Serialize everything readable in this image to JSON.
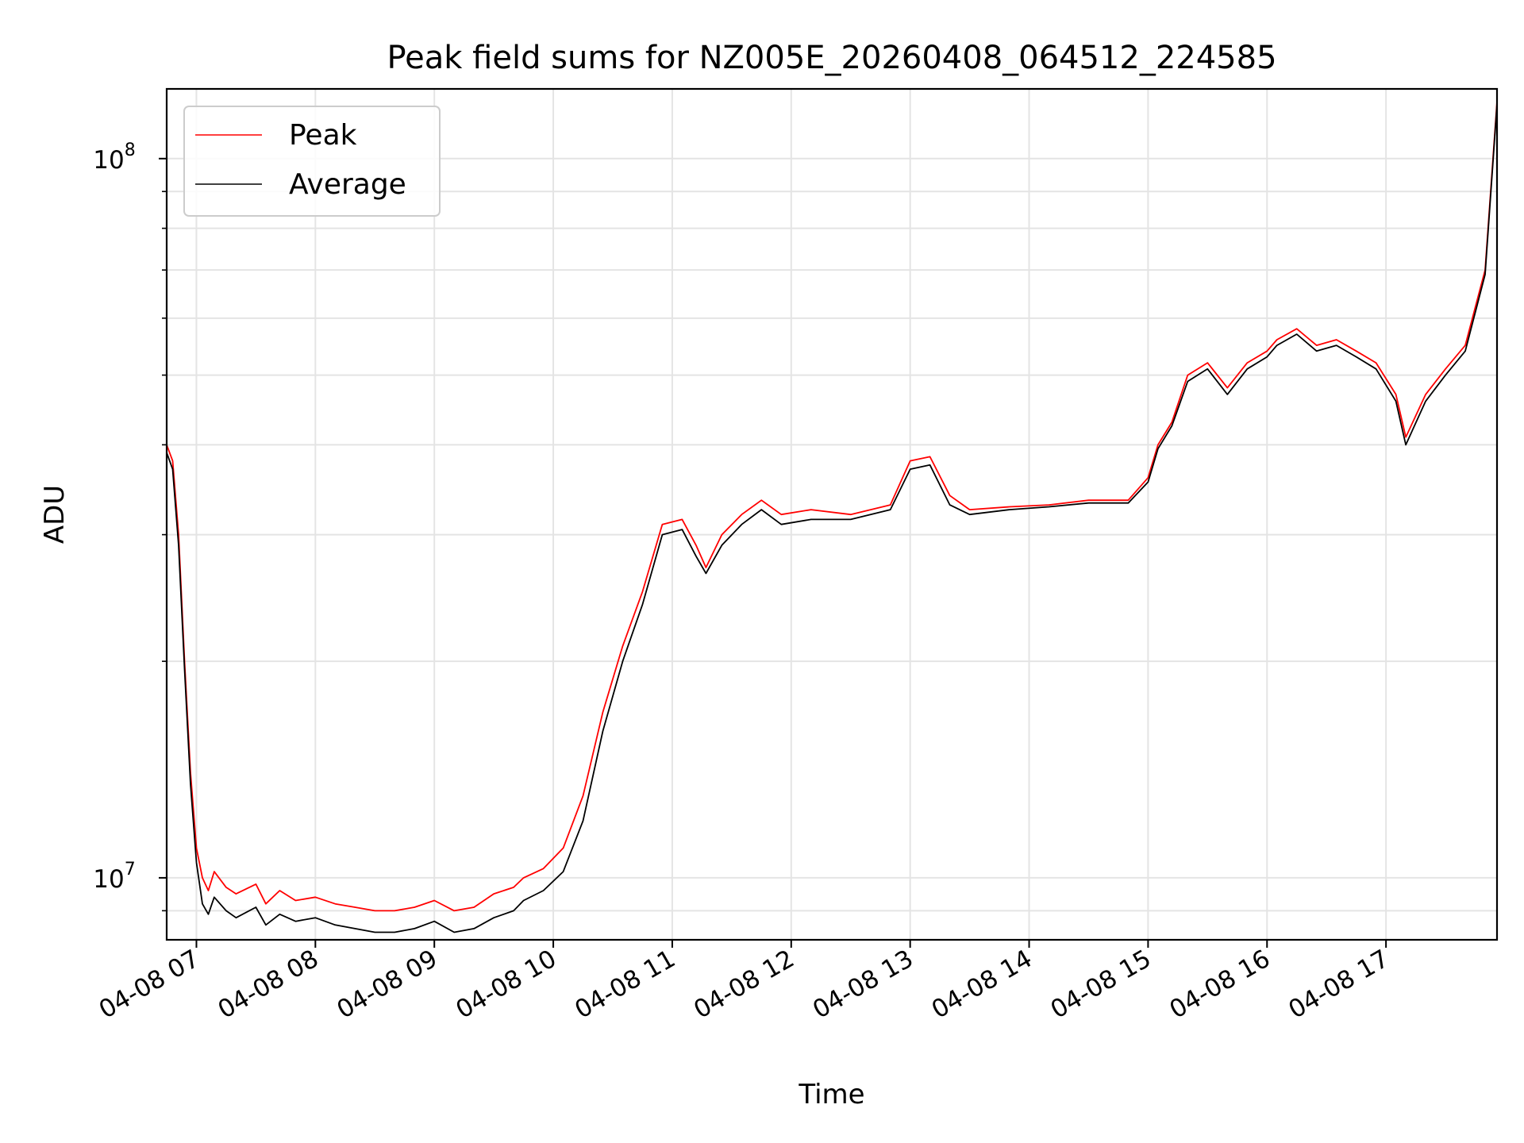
{
  "chart_data": {
    "type": "line",
    "title": "Peak field sums for NZ005E_20260408_064512_224585",
    "xlabel": "Time",
    "ylabel": "ADU",
    "yscale": "log",
    "ylim": [
      8200000,
      125000000
    ],
    "xlim": [
      "2026-04-08 06:45",
      "2026-04-08 17:56"
    ],
    "grid": true,
    "legend": "top-left",
    "x_ticks": [
      {
        "t": "2026-04-08 07:00",
        "label": "04-08 07"
      },
      {
        "t": "2026-04-08 08:00",
        "label": "04-08 08"
      },
      {
        "t": "2026-04-08 09:00",
        "label": "04-08 09"
      },
      {
        "t": "2026-04-08 10:00",
        "label": "04-08 10"
      },
      {
        "t": "2026-04-08 11:00",
        "label": "04-08 11"
      },
      {
        "t": "2026-04-08 12:00",
        "label": "04-08 12"
      },
      {
        "t": "2026-04-08 13:00",
        "label": "04-08 13"
      },
      {
        "t": "2026-04-08 14:00",
        "label": "04-08 14"
      },
      {
        "t": "2026-04-08 15:00",
        "label": "04-08 15"
      },
      {
        "t": "2026-04-08 16:00",
        "label": "04-08 16"
      },
      {
        "t": "2026-04-08 17:00",
        "label": "04-08 17"
      }
    ],
    "y_ticks": [
      {
        "value": 10000000,
        "base": "10",
        "exp": "7"
      },
      {
        "value": 100000000,
        "base": "10",
        "exp": "8"
      }
    ],
    "series": [
      {
        "name": "Peak",
        "color": "#ff0000",
        "x": [
          "2026-04-08 06:45",
          "2026-04-08 06:48",
          "2026-04-08 06:51",
          "2026-04-08 06:54",
          "2026-04-08 06:57",
          "2026-04-08 07:00",
          "2026-04-08 07:03",
          "2026-04-08 07:06",
          "2026-04-08 07:09",
          "2026-04-08 07:15",
          "2026-04-08 07:20",
          "2026-04-08 07:30",
          "2026-04-08 07:35",
          "2026-04-08 07:42",
          "2026-04-08 07:50",
          "2026-04-08 08:00",
          "2026-04-08 08:10",
          "2026-04-08 08:20",
          "2026-04-08 08:30",
          "2026-04-08 08:40",
          "2026-04-08 08:50",
          "2026-04-08 09:00",
          "2026-04-08 09:10",
          "2026-04-08 09:20",
          "2026-04-08 09:30",
          "2026-04-08 09:40",
          "2026-04-08 09:45",
          "2026-04-08 09:55",
          "2026-04-08 10:05",
          "2026-04-08 10:15",
          "2026-04-08 10:25",
          "2026-04-08 10:35",
          "2026-04-08 10:45",
          "2026-04-08 10:55",
          "2026-04-08 11:05",
          "2026-04-08 11:12",
          "2026-04-08 11:17",
          "2026-04-08 11:25",
          "2026-04-08 11:35",
          "2026-04-08 11:45",
          "2026-04-08 11:55",
          "2026-04-08 12:10",
          "2026-04-08 12:30",
          "2026-04-08 12:50",
          "2026-04-08 13:00",
          "2026-04-08 13:10",
          "2026-04-08 13:20",
          "2026-04-08 13:30",
          "2026-04-08 13:50",
          "2026-04-08 14:10",
          "2026-04-08 14:30",
          "2026-04-08 14:50",
          "2026-04-08 15:00",
          "2026-04-08 15:05",
          "2026-04-08 15:12",
          "2026-04-08 15:20",
          "2026-04-08 15:30",
          "2026-04-08 15:40",
          "2026-04-08 15:50",
          "2026-04-08 16:00",
          "2026-04-08 16:05",
          "2026-04-08 16:15",
          "2026-04-08 16:25",
          "2026-04-08 16:35",
          "2026-04-08 16:45",
          "2026-04-08 16:55",
          "2026-04-08 17:05",
          "2026-04-08 17:10",
          "2026-04-08 17:20",
          "2026-04-08 17:30",
          "2026-04-08 17:40",
          "2026-04-08 17:50",
          "2026-04-08 17:56"
        ],
        "values": [
          40000000,
          38000000,
          30000000,
          20000000,
          14000000,
          11000000,
          10000000,
          9600000,
          10200000,
          9700000,
          9500000,
          9800000,
          9200000,
          9600000,
          9300000,
          9400000,
          9200000,
          9100000,
          9000000,
          9000000,
          9100000,
          9300000,
          9000000,
          9100000,
          9500000,
          9700000,
          10000000,
          10300000,
          11000000,
          13000000,
          17000000,
          21000000,
          25000000,
          31000000,
          31500000,
          29000000,
          27000000,
          30000000,
          32000000,
          33500000,
          32000000,
          32500000,
          32000000,
          33000000,
          38000000,
          38500000,
          34000000,
          32500000,
          32800000,
          33000000,
          33500000,
          33500000,
          36000000,
          40000000,
          43000000,
          50000000,
          52000000,
          48000000,
          52000000,
          54000000,
          56000000,
          58000000,
          55000000,
          56000000,
          54000000,
          52000000,
          47000000,
          41000000,
          47000000,
          51000000,
          55000000,
          70000000,
          120000000
        ]
      },
      {
        "name": "Average",
        "color": "#000000",
        "x": [
          "2026-04-08 06:45",
          "2026-04-08 06:48",
          "2026-04-08 06:51",
          "2026-04-08 06:54",
          "2026-04-08 06:57",
          "2026-04-08 07:00",
          "2026-04-08 07:03",
          "2026-04-08 07:06",
          "2026-04-08 07:09",
          "2026-04-08 07:15",
          "2026-04-08 07:20",
          "2026-04-08 07:30",
          "2026-04-08 07:35",
          "2026-04-08 07:42",
          "2026-04-08 07:50",
          "2026-04-08 08:00",
          "2026-04-08 08:10",
          "2026-04-08 08:20",
          "2026-04-08 08:30",
          "2026-04-08 08:40",
          "2026-04-08 08:50",
          "2026-04-08 09:00",
          "2026-04-08 09:10",
          "2026-04-08 09:20",
          "2026-04-08 09:30",
          "2026-04-08 09:40",
          "2026-04-08 09:45",
          "2026-04-08 09:55",
          "2026-04-08 10:05",
          "2026-04-08 10:15",
          "2026-04-08 10:25",
          "2026-04-08 10:35",
          "2026-04-08 10:45",
          "2026-04-08 10:55",
          "2026-04-08 11:05",
          "2026-04-08 11:12",
          "2026-04-08 11:17",
          "2026-04-08 11:25",
          "2026-04-08 11:35",
          "2026-04-08 11:45",
          "2026-04-08 11:55",
          "2026-04-08 12:10",
          "2026-04-08 12:30",
          "2026-04-08 12:50",
          "2026-04-08 13:00",
          "2026-04-08 13:10",
          "2026-04-08 13:20",
          "2026-04-08 13:30",
          "2026-04-08 13:50",
          "2026-04-08 14:10",
          "2026-04-08 14:30",
          "2026-04-08 14:50",
          "2026-04-08 15:00",
          "2026-04-08 15:05",
          "2026-04-08 15:12",
          "2026-04-08 15:20",
          "2026-04-08 15:30",
          "2026-04-08 15:40",
          "2026-04-08 15:50",
          "2026-04-08 16:00",
          "2026-04-08 16:05",
          "2026-04-08 16:15",
          "2026-04-08 16:25",
          "2026-04-08 16:35",
          "2026-04-08 16:45",
          "2026-04-08 16:55",
          "2026-04-08 17:05",
          "2026-04-08 17:10",
          "2026-04-08 17:20",
          "2026-04-08 17:30",
          "2026-04-08 17:40",
          "2026-04-08 17:50",
          "2026-04-08 17:56"
        ],
        "values": [
          39000000,
          37000000,
          29000000,
          19500000,
          13500000,
          10500000,
          9200000,
          8900000,
          9400000,
          9000000,
          8800000,
          9100000,
          8600000,
          8900000,
          8700000,
          8800000,
          8600000,
          8500000,
          8400000,
          8400000,
          8500000,
          8700000,
          8400000,
          8500000,
          8800000,
          9000000,
          9300000,
          9600000,
          10200000,
          12000000,
          16000000,
          20000000,
          24000000,
          30000000,
          30500000,
          28000000,
          26500000,
          29000000,
          31000000,
          32500000,
          31000000,
          31500000,
          31500000,
          32500000,
          37000000,
          37500000,
          33000000,
          32000000,
          32500000,
          32800000,
          33200000,
          33200000,
          35500000,
          39500000,
          42500000,
          49000000,
          51000000,
          47000000,
          51000000,
          53000000,
          55000000,
          57000000,
          54000000,
          55000000,
          53000000,
          51000000,
          46000000,
          40000000,
          46000000,
          50000000,
          54000000,
          69000000,
          119000000
        ]
      }
    ]
  }
}
